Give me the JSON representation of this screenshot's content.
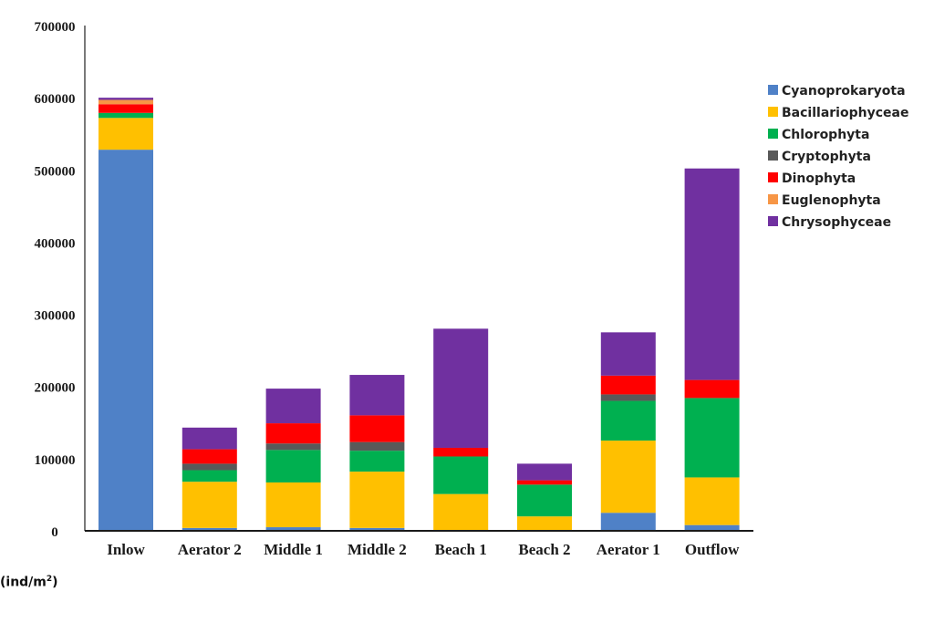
{
  "chart_data": {
    "type": "bar",
    "stacked": true,
    "categories": [
      "Inlow",
      "Aerator 2",
      "Middle 1",
      "Middle 2",
      "Beach 1",
      "Beach 2",
      "Aerator 1",
      "Outflow"
    ],
    "series": [
      {
        "name": "Cyanoprokaryota",
        "color": "#4f81c7",
        "values": [
          528000,
          4000,
          5000,
          4000,
          0,
          0,
          25000,
          8000
        ]
      },
      {
        "name": "Bacillariophyceae",
        "color": "#ffc000",
        "values": [
          44000,
          64000,
          62000,
          78000,
          51000,
          20000,
          100000,
          66000
        ]
      },
      {
        "name": "Chlorophyta",
        "color": "#00b050",
        "values": [
          7000,
          16000,
          45000,
          29000,
          52000,
          44000,
          55000,
          110000
        ]
      },
      {
        "name": "Cryptophyta",
        "color": "#595959",
        "values": [
          0,
          9000,
          9000,
          12000,
          0,
          0,
          9000,
          0
        ]
      },
      {
        "name": "Dinophyta",
        "color": "#ff0000",
        "values": [
          12000,
          20000,
          28000,
          37000,
          12000,
          6000,
          26000,
          25000
        ]
      },
      {
        "name": "Euglenophyta",
        "color": "#f79646",
        "values": [
          6000,
          0,
          0,
          0,
          0,
          0,
          0,
          0
        ]
      },
      {
        "name": "Chrysophyceae",
        "color": "#7030a0",
        "values": [
          3000,
          30000,
          48000,
          56000,
          165000,
          23000,
          60000,
          293000
        ]
      }
    ],
    "y_ticks": [
      "0",
      "100000",
      "200000",
      "300000",
      "400000",
      "500000",
      "600000",
      "700000"
    ],
    "ylim": [
      0,
      700000
    ],
    "legend_position": "right",
    "grid": false
  },
  "unit_label": {
    "text": "(ind/m",
    "superscript": "2",
    "close": ")"
  }
}
